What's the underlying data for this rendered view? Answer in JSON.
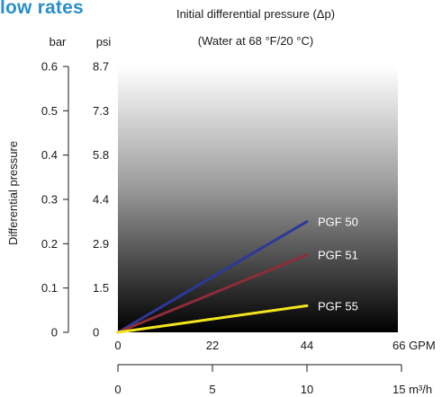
{
  "heading_fragment": "low rates",
  "chart_data": {
    "type": "line",
    "title": "Initial differential pressure (Δp)",
    "subtitle": "(Water at 68 °F/20 °C)",
    "ylabel": "Differential pressure",
    "y_units": {
      "bar": "bar",
      "psi": "psi"
    },
    "y_ticks_bar": [
      "0",
      "0.1",
      "0.2",
      "0.3",
      "0.4",
      "0.5",
      "0.6"
    ],
    "y_ticks_psi": [
      "0",
      "1.5",
      "2.9",
      "4.4",
      "5.8",
      "7.3",
      "8.7"
    ],
    "x_ticks_gpm": [
      "0",
      "22",
      "44",
      "66 GPM"
    ],
    "x_ticks_m3h": [
      "0",
      "5",
      "10",
      "15 m³/h"
    ],
    "xlim_m3h": [
      0,
      15
    ],
    "ylim_bar": [
      0,
      0.6
    ],
    "series": [
      {
        "name": "PGF 50",
        "color": "#2b3a9a",
        "x": [
          0,
          10
        ],
        "y": [
          0,
          0.25
        ]
      },
      {
        "name": "PGF 51",
        "color": "#8e2c38",
        "x": [
          0,
          10
        ],
        "y": [
          0,
          0.175
        ]
      },
      {
        "name": "PGF 55",
        "color": "#f3e61e",
        "x": [
          0,
          10
        ],
        "y": [
          0,
          0.06
        ]
      }
    ]
  }
}
